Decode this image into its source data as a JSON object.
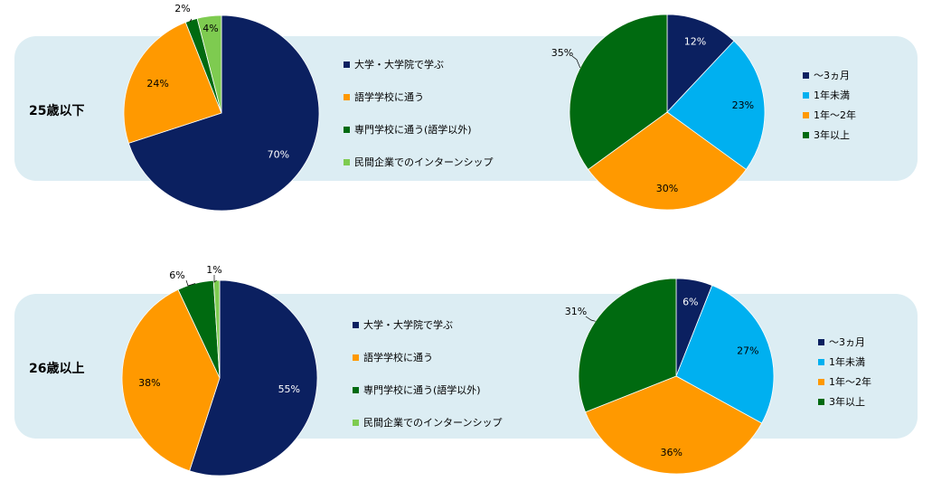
{
  "colors": {
    "navy": "#0b2060",
    "orange": "#ff9900",
    "dark_green": "#006a10",
    "light_green": "#7ecb50",
    "sky_blue": "#00b0f0",
    "band": "#dcedf3"
  },
  "rows": [
    {
      "label": "25歳以下"
    },
    {
      "label": "26歳以上"
    }
  ],
  "legends": {
    "purpose": [
      "大学・大学院で学ぶ",
      "語学学校に通う",
      "専門学校に通う(語学以外)",
      "民間企業でのインターンシップ"
    ],
    "period": [
      "～3ヵ月",
      "1年未満",
      "1年～2年",
      "3年以上"
    ]
  },
  "chart_data": [
    {
      "type": "pie",
      "group": "25歳以下",
      "categories": [
        "大学・大学院で学ぶ",
        "語学学校に通う",
        "専門学校に通う(語学以外)",
        "民間企業でのインターンシップ"
      ],
      "values": [
        70,
        24,
        2,
        4
      ],
      "labels": [
        "70%",
        "24%",
        "2%",
        "4%"
      ],
      "colors": [
        "#0b2060",
        "#ff9900",
        "#006a10",
        "#7ecb50"
      ]
    },
    {
      "type": "pie",
      "group": "25歳以下",
      "categories": [
        "～3ヵ月",
        "1年未満",
        "1年～2年",
        "3年以上"
      ],
      "values": [
        12,
        23,
        30,
        35
      ],
      "labels": [
        "12%",
        "23%",
        "30%",
        "35%"
      ],
      "colors": [
        "#0b2060",
        "#00b0f0",
        "#ff9900",
        "#006a10"
      ]
    },
    {
      "type": "pie",
      "group": "26歳以上",
      "categories": [
        "大学・大学院で学ぶ",
        "語学学校に通う",
        "専門学校に通う(語学以外)",
        "民間企業でのインターンシップ"
      ],
      "values": [
        55,
        38,
        6,
        1
      ],
      "labels": [
        "55%",
        "38%",
        "6%",
        "1%"
      ],
      "colors": [
        "#0b2060",
        "#ff9900",
        "#006a10",
        "#7ecb50"
      ]
    },
    {
      "type": "pie",
      "group": "26歳以上",
      "categories": [
        "～3ヵ月",
        "1年未満",
        "1年～2年",
        "3年以上"
      ],
      "values": [
        6,
        27,
        36,
        31
      ],
      "labels": [
        "6%",
        "27%",
        "36%",
        "31%"
      ],
      "colors": [
        "#0b2060",
        "#00b0f0",
        "#ff9900",
        "#006a10"
      ]
    }
  ]
}
